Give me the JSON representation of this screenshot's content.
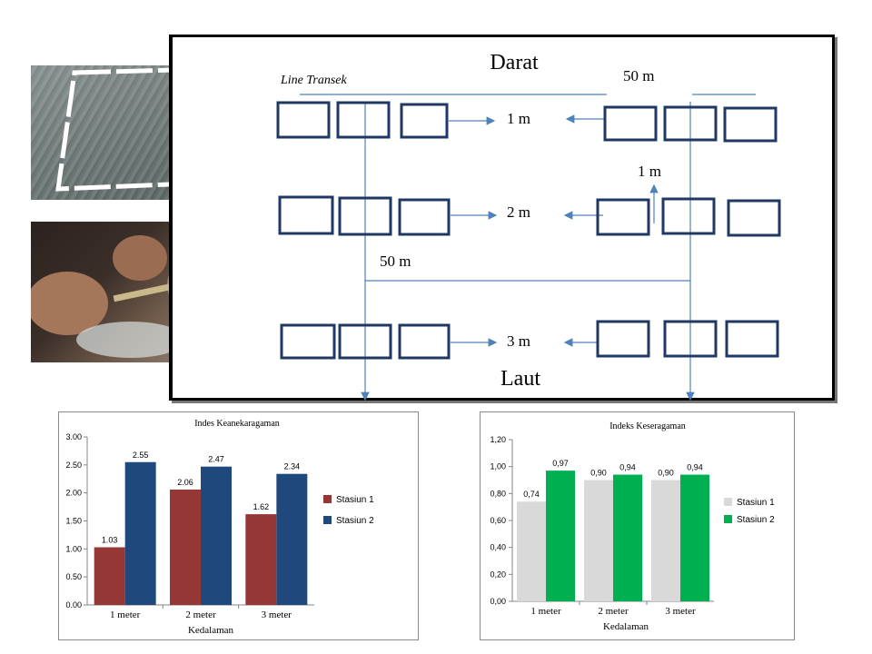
{
  "diagram": {
    "top_label": "Darat",
    "bottom_label": "Laut",
    "line_transek": "Line Transek",
    "dist_top": "50 m",
    "dist_middle": "50 m",
    "row_labels": [
      "1 m",
      "2 m",
      "3 m"
    ],
    "vertical_spacing": "1 m"
  },
  "chart_data": [
    {
      "type": "bar",
      "title": "Indes Keanekaragaman",
      "xlabel": "Kedalaman",
      "ylabel": "",
      "categories": [
        "1 meter",
        "2 meter",
        "3 meter"
      ],
      "series": [
        {
          "name": "Stasiun 1",
          "values": [
            1.03,
            2.06,
            1.62
          ],
          "labels": [
            "1.03",
            "2.06",
            "1.62"
          ],
          "color": "#953735"
        },
        {
          "name": "Stasiun 2",
          "values": [
            2.55,
            2.47,
            2.34
          ],
          "labels": [
            "2.55",
            "2.47",
            "2.34"
          ],
          "color": "#1f497d"
        }
      ],
      "ylim": [
        0,
        3.0
      ],
      "yticks": [
        "0.00",
        "0.50",
        "1.00",
        "1.50",
        "2.00",
        "2.50",
        "3.00"
      ],
      "grid": false,
      "legend": "right"
    },
    {
      "type": "bar",
      "title": "Indeks Keseragaman",
      "xlabel": "Kedalaman",
      "ylabel": "",
      "categories": [
        "1 meter",
        "2 meter",
        "3 meter"
      ],
      "series": [
        {
          "name": "Stasiun 1",
          "values": [
            0.74,
            0.9,
            0.9
          ],
          "labels": [
            "0,74",
            "0,90",
            "0,90"
          ],
          "color": "#d9d9d9"
        },
        {
          "name": "Stasiun 2",
          "values": [
            0.97,
            0.94,
            0.94
          ],
          "labels": [
            "0,97",
            "0,94",
            "0,94"
          ],
          "color": "#00b050"
        }
      ],
      "ylim": [
        0,
        1.2
      ],
      "yticks": [
        "0,00",
        "0,20",
        "0,40",
        "0,60",
        "0,80",
        "1,00",
        "1,20"
      ],
      "grid": false,
      "legend": "right"
    }
  ]
}
